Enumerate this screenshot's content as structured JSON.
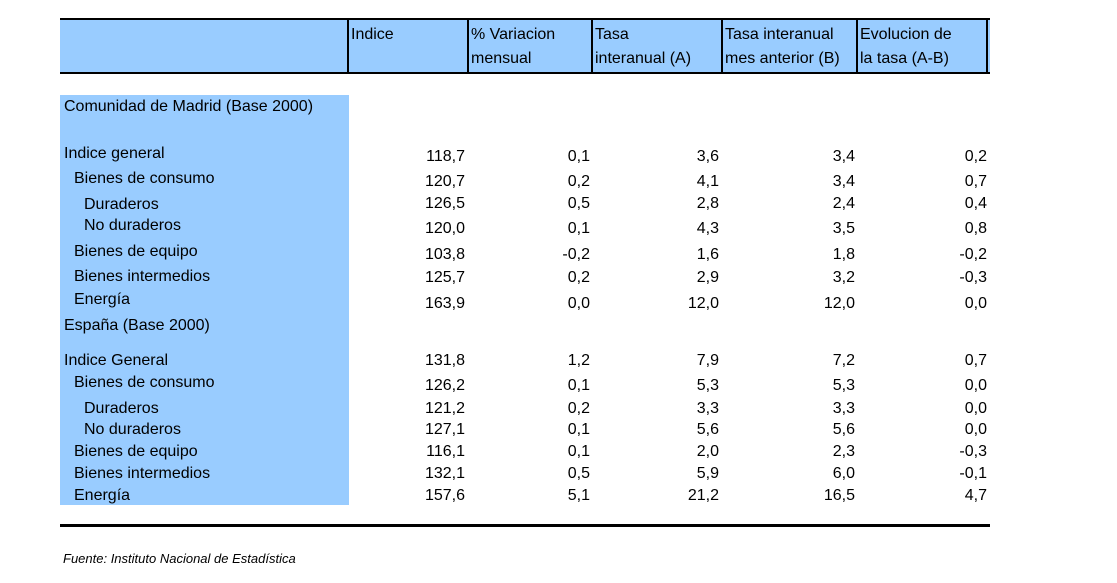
{
  "headers": [
    "Indice",
    "% Variacion\nmensual",
    "Tasa\ninteranual (A)",
    "Tasa interanual\nmes anterior (B)",
    "Evolucion de\nla tasa (A-B)"
  ],
  "sections": [
    {
      "title": "Comunidad de Madrid (Base 2000)",
      "rows": [
        {
          "label": "Indice general",
          "values": [
            "118,7",
            "0,1",
            "3,6",
            "3,4",
            "0,2"
          ]
        },
        {
          "label": "Bienes de consumo",
          "values": [
            "120,7",
            "0,2",
            "4,1",
            "3,4",
            "0,7"
          ]
        },
        {
          "label": "Duraderos",
          "values": [
            "126,5",
            "0,5",
            "2,8",
            "2,4",
            "0,4"
          ]
        },
        {
          "label": "No duraderos",
          "values": [
            "120,0",
            "0,1",
            "4,3",
            "3,5",
            "0,8"
          ]
        },
        {
          "label": "Bienes de equipo",
          "values": [
            "103,8",
            "-0,2",
            "1,6",
            "1,8",
            "-0,2"
          ]
        },
        {
          "label": "Bienes intermedios",
          "values": [
            "125,7",
            "0,2",
            "2,9",
            "3,2",
            "-0,3"
          ]
        },
        {
          "label": "Energía",
          "values": [
            "163,9",
            "0,0",
            "12,0",
            "12,0",
            "0,0"
          ]
        }
      ]
    },
    {
      "title": "España (Base 2000)",
      "rows": [
        {
          "label": "Indice General",
          "values": [
            "131,8",
            "1,2",
            "7,9",
            "7,2",
            "0,7"
          ]
        },
        {
          "label": "Bienes de consumo",
          "values": [
            "126,2",
            "0,1",
            "5,3",
            "5,3",
            "0,0"
          ]
        },
        {
          "label": "Duraderos",
          "values": [
            "121,2",
            "0,2",
            "3,3",
            "3,3",
            "0,0"
          ]
        },
        {
          "label": "No duraderos",
          "values": [
            "127,1",
            "0,1",
            "5,6",
            "5,6",
            "0,0"
          ]
        },
        {
          "label": "Bienes de equipo",
          "values": [
            "116,1",
            "0,1",
            "2,0",
            "2,3",
            "-0,3"
          ]
        },
        {
          "label": "Bienes intermedios",
          "values": [
            "132,1",
            "0,5",
            "5,9",
            "6,0",
            "-0,1"
          ]
        },
        {
          "label": "Energía",
          "values": [
            "157,6",
            "5,1",
            "21,2",
            "16,5",
            "4,7"
          ]
        }
      ]
    }
  ],
  "source": "Fuente: Instituto Nacional de Estadística"
}
